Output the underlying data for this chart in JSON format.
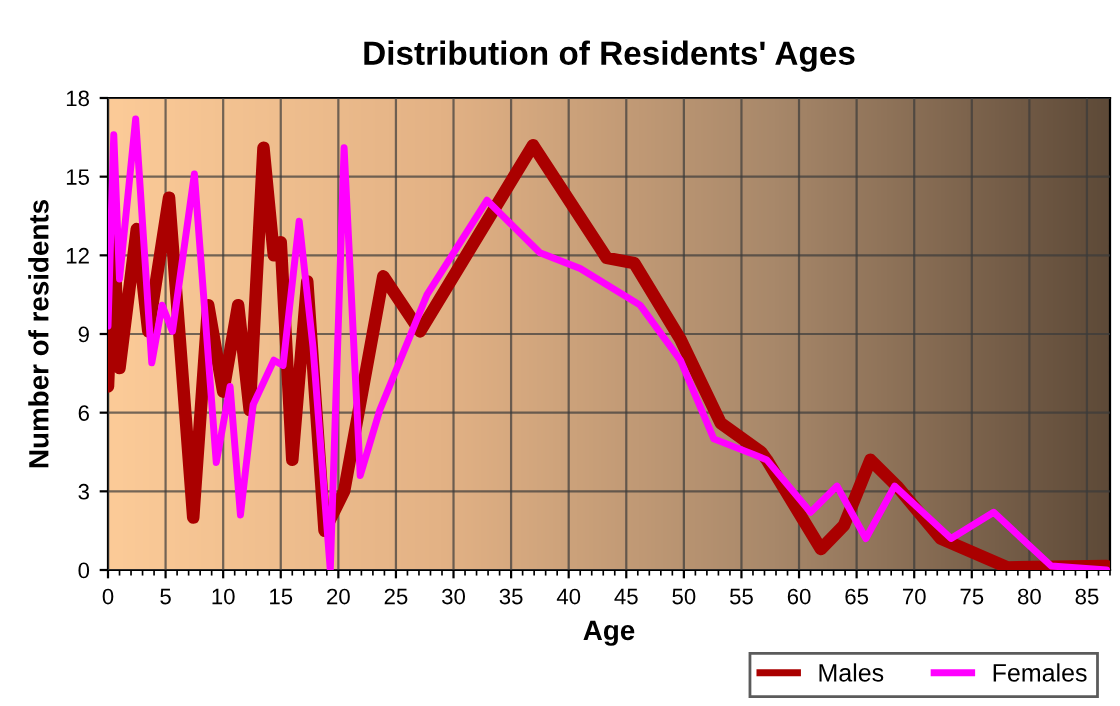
{
  "chart_data": {
    "type": "line",
    "title": "Distribution of Residents' Ages",
    "xlabel": "Age",
    "ylabel": "Number of residents",
    "xlim": [
      0,
      87
    ],
    "xticks": [
      0,
      5,
      10,
      15,
      20,
      25,
      30,
      35,
      40,
      45,
      50,
      55,
      60,
      65,
      70,
      75,
      80,
      85
    ],
    "ylim": [
      0,
      18
    ],
    "yticks": [
      0,
      3,
      6,
      9,
      12,
      15,
      18
    ],
    "grid": true,
    "legend": "bottom right",
    "marker": "none",
    "line_style": "solid",
    "series": [
      {
        "name": "Males",
        "color": "#aa0000",
        "x": [
          0,
          0.5,
          1,
          2.5,
          3.5,
          5.3,
          7.4,
          8.7,
          10,
          11.3,
          12.3,
          13.5,
          14.4,
          15,
          16,
          17.3,
          18.8,
          20.5,
          23.9,
          27.1,
          36.9,
          43.3,
          45.7,
          49.7,
          53.2,
          56.7,
          57.2,
          61.9,
          63.9,
          66.2,
          68.5,
          72.3,
          78.1,
          86.7
        ],
        "values": [
          7,
          12.6,
          7.7,
          13,
          9.1,
          14.2,
          2,
          10.1,
          6.8,
          10.1,
          6.1,
          16.1,
          12,
          12.5,
          4.2,
          11,
          1.5,
          3,
          11.2,
          9.1,
          16.2,
          11.9,
          11.7,
          8.8,
          5.6,
          4.5,
          4.2,
          0.8,
          1.7,
          4.2,
          3.2,
          1.2,
          0.1,
          0.15
        ]
      },
      {
        "name": "Females",
        "color": "#ff00ff",
        "x": [
          0,
          0.5,
          1,
          2.4,
          3.8,
          4.7,
          5.6,
          7.5,
          9.4,
          10.6,
          11.5,
          12.6,
          14.4,
          15.2,
          16.6,
          17.8,
          19.3,
          20.5,
          21.9,
          23.6,
          27.7,
          32.9,
          37.5,
          41,
          46.2,
          49.7,
          52.6,
          56.1,
          57.2,
          61,
          63.3,
          65.8,
          68.3,
          73.2,
          76.9,
          81.9,
          86.7
        ],
        "values": [
          9.3,
          16.6,
          11.1,
          17.2,
          7.9,
          10.1,
          9.1,
          15.1,
          4.1,
          7,
          2.1,
          6.3,
          8,
          7.8,
          13.3,
          8.5,
          0,
          16.1,
          3.6,
          6.1,
          10.5,
          14.1,
          12.1,
          11.5,
          10.1,
          8,
          5,
          4.4,
          4.2,
          2.2,
          3.2,
          1.2,
          3.2,
          1.2,
          2.2,
          0.15,
          0
        ]
      }
    ]
  }
}
